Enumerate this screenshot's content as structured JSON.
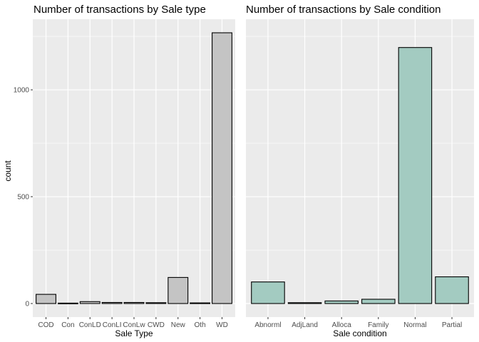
{
  "chart_data": [
    {
      "type": "bar",
      "title": "Number of transactions by Sale type",
      "xlabel": "Sale Type",
      "ylabel": "count",
      "categories": [
        "COD",
        "Con",
        "ConLD",
        "ConLI",
        "ConLw",
        "CWD",
        "New",
        "Oth",
        "WD"
      ],
      "values": [
        43,
        2,
        9,
        5,
        5,
        4,
        122,
        3,
        1267
      ],
      "ylim": [
        0,
        1267
      ],
      "yticks": [
        0,
        500,
        1000
      ],
      "grid": true,
      "bar_fill": "#c4c4c4",
      "bar_stroke": "#000000"
    },
    {
      "type": "bar",
      "title": "Number of transactions by Sale condition",
      "xlabel": "Sale condition",
      "ylabel": "",
      "categories": [
        "Abnorml",
        "AdjLand",
        "Alloca",
        "Family",
        "Normal",
        "Partial"
      ],
      "values": [
        101,
        4,
        12,
        20,
        1198,
        125
      ],
      "ylim": [
        0,
        1267
      ],
      "yticks": [
        0,
        500,
        1000
      ],
      "grid": true,
      "bar_fill": "#a3cbc1",
      "bar_stroke": "#000000"
    }
  ],
  "panel_bg": "#ebebeb",
  "grid_color": "#ffffff"
}
